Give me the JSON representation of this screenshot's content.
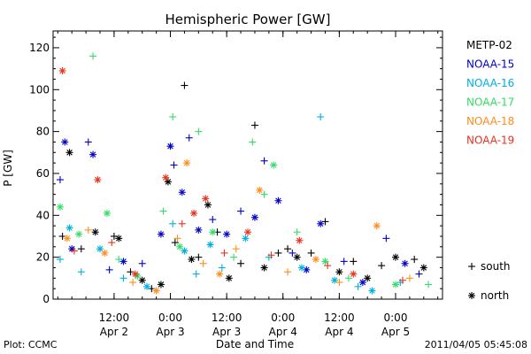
{
  "chart_data": {
    "type": "scatter",
    "title": "Hemispheric Power [GW]",
    "ylabel": "P [GW]",
    "xlabel": "Date and Time",
    "ylim": [
      0,
      128
    ],
    "y_ticks": [
      0,
      20,
      40,
      60,
      80,
      100,
      120
    ],
    "xlim": [
      "2011-04-01T23:00",
      "2011-04-05T10:00"
    ],
    "x_ticks": [
      {
        "time": "2011-04-02T12:00",
        "label": "12:00",
        "date": "Apr 2"
      },
      {
        "time": "2011-04-03T00:00",
        "label": "0:00",
        "date": "Apr 3"
      },
      {
        "time": "2011-04-03T12:00",
        "label": "12:00",
        "date": "Apr 3"
      },
      {
        "time": "2011-04-04T00:00",
        "label": "0:00",
        "date": "Apr 4"
      },
      {
        "time": "2011-04-04T12:00",
        "label": "12:00",
        "date": "Apr 4"
      },
      {
        "time": "2011-04-05T00:00",
        "label": "0:00",
        "date": "Apr 5"
      }
    ],
    "legend_placement": "right",
    "markers": [
      {
        "symbol": "+",
        "label": "south"
      },
      {
        "symbol": "*",
        "label": "north"
      }
    ],
    "series": [
      {
        "name": "METP-02",
        "color": "#000000",
        "points": [
          {
            "t": "2011-04-02T01:00",
            "y": 30,
            "m": "+"
          },
          {
            "t": "2011-04-02T02:30",
            "y": 70,
            "m": "*"
          },
          {
            "t": "2011-04-02T05:00",
            "y": 24,
            "m": "+"
          },
          {
            "t": "2011-04-02T08:00",
            "y": 32,
            "m": "*"
          },
          {
            "t": "2011-04-02T12:00",
            "y": 30,
            "m": "+"
          },
          {
            "t": "2011-04-02T13:00",
            "y": 29,
            "m": "*"
          },
          {
            "t": "2011-04-02T15:30",
            "y": 13,
            "m": "+"
          },
          {
            "t": "2011-04-02T18:00",
            "y": 9,
            "m": "*"
          },
          {
            "t": "2011-04-02T20:00",
            "y": 5,
            "m": "+"
          },
          {
            "t": "2011-04-02T22:00",
            "y": 7,
            "m": "*"
          },
          {
            "t": "2011-04-02T23:30",
            "y": 56,
            "m": "*"
          },
          {
            "t": "2011-04-03T01:00",
            "y": 27,
            "m": "+"
          },
          {
            "t": "2011-04-03T03:00",
            "y": 102,
            "m": "+"
          },
          {
            "t": "2011-04-03T04:30",
            "y": 19,
            "m": "*"
          },
          {
            "t": "2011-04-03T06:00",
            "y": 20,
            "m": "+"
          },
          {
            "t": "2011-04-03T08:00",
            "y": 45,
            "m": "*"
          },
          {
            "t": "2011-04-03T10:00",
            "y": 32,
            "m": "+"
          },
          {
            "t": "2011-04-03T12:30",
            "y": 10,
            "m": "*"
          },
          {
            "t": "2011-04-03T15:00",
            "y": 17,
            "m": "+"
          },
          {
            "t": "2011-04-03T18:00",
            "y": 83,
            "m": "+"
          },
          {
            "t": "2011-04-03T20:00",
            "y": 15,
            "m": "*"
          },
          {
            "t": "2011-04-03T23:00",
            "y": 22,
            "m": "+"
          },
          {
            "t": "2011-04-04T01:00",
            "y": 24,
            "m": "+"
          },
          {
            "t": "2011-04-04T03:00",
            "y": 20,
            "m": "*"
          },
          {
            "t": "2011-04-04T06:00",
            "y": 22,
            "m": "+"
          },
          {
            "t": "2011-04-04T09:00",
            "y": 37,
            "m": "+"
          },
          {
            "t": "2011-04-04T12:00",
            "y": 13,
            "m": "*"
          },
          {
            "t": "2011-04-04T15:00",
            "y": 18,
            "m": "+"
          },
          {
            "t": "2011-04-04T18:00",
            "y": 10,
            "m": "*"
          },
          {
            "t": "2011-04-04T21:00",
            "y": 16,
            "m": "+"
          },
          {
            "t": "2011-04-05T00:00",
            "y": 20,
            "m": "*"
          },
          {
            "t": "2011-04-05T04:00",
            "y": 19,
            "m": "+"
          },
          {
            "t": "2011-04-05T06:00",
            "y": 15,
            "m": "*"
          }
        ]
      },
      {
        "name": "NOAA-15",
        "color": "#0000cc",
        "points": [
          {
            "t": "2011-04-02T00:30",
            "y": 57,
            "m": "+"
          },
          {
            "t": "2011-04-02T01:30",
            "y": 75,
            "m": "*"
          },
          {
            "t": "2011-04-02T03:00",
            "y": 24,
            "m": "*"
          },
          {
            "t": "2011-04-02T06:30",
            "y": 75,
            "m": "+"
          },
          {
            "t": "2011-04-02T07:30",
            "y": 69,
            "m": "*"
          },
          {
            "t": "2011-04-02T11:00",
            "y": 14,
            "m": "+"
          },
          {
            "t": "2011-04-02T14:00",
            "y": 18,
            "m": "*"
          },
          {
            "t": "2011-04-02T18:00",
            "y": 17,
            "m": "+"
          },
          {
            "t": "2011-04-02T22:00",
            "y": 31,
            "m": "*"
          },
          {
            "t": "2011-04-03T00:00",
            "y": 73,
            "m": "*"
          },
          {
            "t": "2011-04-03T00:45",
            "y": 64,
            "m": "+"
          },
          {
            "t": "2011-04-03T02:30",
            "y": 51,
            "m": "*"
          },
          {
            "t": "2011-04-03T04:00",
            "y": 77,
            "m": "+"
          },
          {
            "t": "2011-04-03T06:00",
            "y": 33,
            "m": "*"
          },
          {
            "t": "2011-04-03T09:00",
            "y": 38,
            "m": "+"
          },
          {
            "t": "2011-04-03T12:00",
            "y": 31,
            "m": "*"
          },
          {
            "t": "2011-04-03T15:00",
            "y": 42,
            "m": "+"
          },
          {
            "t": "2011-04-03T18:00",
            "y": 39,
            "m": "*"
          },
          {
            "t": "2011-04-03T20:00",
            "y": 66,
            "m": "+"
          },
          {
            "t": "2011-04-03T23:00",
            "y": 47,
            "m": "*"
          },
          {
            "t": "2011-04-04T02:00",
            "y": 22,
            "m": "+"
          },
          {
            "t": "2011-04-04T05:00",
            "y": 14,
            "m": "*"
          },
          {
            "t": "2011-04-04T08:00",
            "y": 36,
            "m": "*"
          },
          {
            "t": "2011-04-04T13:00",
            "y": 18,
            "m": "+"
          },
          {
            "t": "2011-04-04T17:00",
            "y": 8,
            "m": "*"
          },
          {
            "t": "2011-04-04T22:00",
            "y": 29,
            "m": "+"
          },
          {
            "t": "2011-04-05T02:00",
            "y": 17,
            "m": "*"
          },
          {
            "t": "2011-04-05T05:00",
            "y": 12,
            "m": "+"
          }
        ]
      },
      {
        "name": "NOAA-16",
        "color": "#00b0e0",
        "points": [
          {
            "t": "2011-04-02T00:30",
            "y": 19,
            "m": "+"
          },
          {
            "t": "2011-04-02T02:30",
            "y": 34,
            "m": "*"
          },
          {
            "t": "2011-04-02T05:00",
            "y": 13,
            "m": "+"
          },
          {
            "t": "2011-04-02T09:00",
            "y": 24,
            "m": "*"
          },
          {
            "t": "2011-04-02T14:00",
            "y": 10,
            "m": "+"
          },
          {
            "t": "2011-04-02T19:00",
            "y": 6,
            "m": "*"
          },
          {
            "t": "2011-04-03T00:30",
            "y": 36,
            "m": "+"
          },
          {
            "t": "2011-04-03T03:00",
            "y": 23,
            "m": "*"
          },
          {
            "t": "2011-04-03T05:30",
            "y": 12,
            "m": "+"
          },
          {
            "t": "2011-04-03T08:30",
            "y": 26,
            "m": "*"
          },
          {
            "t": "2011-04-03T11:00",
            "y": 15,
            "m": "+"
          },
          {
            "t": "2011-04-03T16:00",
            "y": 29,
            "m": "*"
          },
          {
            "t": "2011-04-03T21:00",
            "y": 20,
            "m": "+"
          },
          {
            "t": "2011-04-04T04:00",
            "y": 15,
            "m": "*"
          },
          {
            "t": "2011-04-04T08:00",
            "y": 87,
            "m": "+"
          },
          {
            "t": "2011-04-04T11:00",
            "y": 9,
            "m": "*"
          },
          {
            "t": "2011-04-04T16:00",
            "y": 6,
            "m": "+"
          },
          {
            "t": "2011-04-04T19:00",
            "y": 4,
            "m": "*"
          },
          {
            "t": "2011-04-05T01:00",
            "y": 8,
            "m": "+"
          }
        ]
      },
      {
        "name": "NOAA-17",
        "color": "#33dd66",
        "points": [
          {
            "t": "2011-04-02T00:30",
            "y": 44,
            "m": "*"
          },
          {
            "t": "2011-04-02T04:30",
            "y": 31,
            "m": "*"
          },
          {
            "t": "2011-04-02T07:30",
            "y": 116,
            "m": "+"
          },
          {
            "t": "2011-04-02T10:30",
            "y": 41,
            "m": "*"
          },
          {
            "t": "2011-04-02T13:00",
            "y": 19,
            "m": "+"
          },
          {
            "t": "2011-04-02T17:00",
            "y": 11,
            "m": "*"
          },
          {
            "t": "2011-04-02T22:30",
            "y": 42,
            "m": "+"
          },
          {
            "t": "2011-04-03T00:30",
            "y": 87,
            "m": "+"
          },
          {
            "t": "2011-04-03T02:00",
            "y": 25,
            "m": "*"
          },
          {
            "t": "2011-04-03T06:00",
            "y": 80,
            "m": "+"
          },
          {
            "t": "2011-04-03T09:00",
            "y": 32,
            "m": "*"
          },
          {
            "t": "2011-04-03T13:30",
            "y": 20,
            "m": "+"
          },
          {
            "t": "2011-04-03T17:30",
            "y": 75,
            "m": "+"
          },
          {
            "t": "2011-04-03T20:00",
            "y": 50,
            "m": "+"
          },
          {
            "t": "2011-04-03T22:00",
            "y": 64,
            "m": "*"
          },
          {
            "t": "2011-04-04T03:00",
            "y": 32,
            "m": "+"
          },
          {
            "t": "2011-04-04T09:00",
            "y": 18,
            "m": "*"
          },
          {
            "t": "2011-04-04T14:00",
            "y": 10,
            "m": "+"
          },
          {
            "t": "2011-04-05T00:00",
            "y": 7,
            "m": "*"
          },
          {
            "t": "2011-04-05T07:00",
            "y": 7,
            "m": "+"
          }
        ]
      },
      {
        "name": "NOAA-18",
        "color": "#ff8c1a",
        "points": [
          {
            "t": "2011-04-02T02:00",
            "y": 29,
            "m": "*"
          },
          {
            "t": "2011-04-02T06:30",
            "y": 33,
            "m": "+"
          },
          {
            "t": "2011-04-02T10:00",
            "y": 22,
            "m": "*"
          },
          {
            "t": "2011-04-02T16:00",
            "y": 8,
            "m": "+"
          },
          {
            "t": "2011-04-02T21:00",
            "y": 4,
            "m": "*"
          },
          {
            "t": "2011-04-03T01:30",
            "y": 29,
            "m": "+"
          },
          {
            "t": "2011-04-03T03:30",
            "y": 65,
            "m": "*"
          },
          {
            "t": "2011-04-03T07:00",
            "y": 17,
            "m": "+"
          },
          {
            "t": "2011-04-03T10:30",
            "y": 12,
            "m": "*"
          },
          {
            "t": "2011-04-03T14:00",
            "y": 24,
            "m": "+"
          },
          {
            "t": "2011-04-03T19:00",
            "y": 52,
            "m": "*"
          },
          {
            "t": "2011-04-04T01:00",
            "y": 13,
            "m": "+"
          },
          {
            "t": "2011-04-04T07:00",
            "y": 19,
            "m": "*"
          },
          {
            "t": "2011-04-04T12:00",
            "y": 8,
            "m": "+"
          },
          {
            "t": "2011-04-04T20:00",
            "y": 35,
            "m": "*"
          },
          {
            "t": "2011-04-05T03:00",
            "y": 10,
            "m": "+"
          }
        ]
      },
      {
        "name": "NOAA-19",
        "color": "#e8321e",
        "points": [
          {
            "t": "2011-04-02T01:00",
            "y": 109,
            "m": "*"
          },
          {
            "t": "2011-04-02T03:30",
            "y": 23,
            "m": "+"
          },
          {
            "t": "2011-04-02T08:30",
            "y": 57,
            "m": "*"
          },
          {
            "t": "2011-04-02T11:30",
            "y": 27,
            "m": "+"
          },
          {
            "t": "2011-04-02T16:30",
            "y": 12,
            "m": "*"
          },
          {
            "t": "2011-04-02T23:00",
            "y": 58,
            "m": "*"
          },
          {
            "t": "2011-04-03T02:30",
            "y": 36,
            "m": "+"
          },
          {
            "t": "2011-04-03T05:00",
            "y": 41,
            "m": "*"
          },
          {
            "t": "2011-04-03T07:30",
            "y": 48,
            "m": "*"
          },
          {
            "t": "2011-04-03T11:30",
            "y": 22,
            "m": "+"
          },
          {
            "t": "2011-04-03T16:30",
            "y": 32,
            "m": "*"
          },
          {
            "t": "2011-04-03T21:30",
            "y": 21,
            "m": "+"
          },
          {
            "t": "2011-04-04T03:30",
            "y": 28,
            "m": "*"
          },
          {
            "t": "2011-04-04T09:30",
            "y": 16,
            "m": "+"
          },
          {
            "t": "2011-04-04T15:00",
            "y": 12,
            "m": "*"
          },
          {
            "t": "2011-04-05T01:30",
            "y": 9,
            "m": "+"
          }
        ]
      }
    ]
  },
  "footer": {
    "left": "Plot: CCMC",
    "right": "2011/04/05 05:45:08"
  }
}
